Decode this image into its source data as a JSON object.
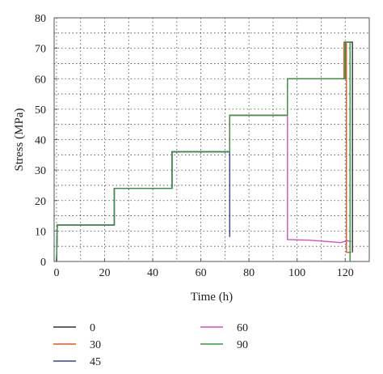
{
  "chart_data": {
    "type": "line",
    "xlabel": "Time (h)",
    "ylabel": "Stress (MPa)",
    "xlim": [
      -1,
      130
    ],
    "ylim": [
      0,
      80
    ],
    "x_ticks": [
      "0",
      "20",
      "40",
      "60",
      "80",
      "100",
      "120"
    ],
    "y_ticks": [
      "0",
      "10",
      "20",
      "30",
      "40",
      "50",
      "60",
      "70",
      "80"
    ],
    "grid": "dotted",
    "legend_position": "bottom",
    "series": [
      {
        "name": "0",
        "color": "#333333",
        "x": [
          0,
          0.3,
          24,
          24,
          48,
          48,
          72,
          72,
          96,
          96,
          120,
          120,
          123,
          123
        ],
        "y": [
          0,
          12,
          12,
          24,
          24,
          36,
          36,
          48,
          48,
          60,
          60,
          72,
          72,
          3
        ]
      },
      {
        "name": "30",
        "color": "#e05a2b",
        "x": [
          0,
          0.3,
          24,
          24,
          48,
          48,
          72,
          72,
          96,
          96,
          119.5,
          119.5,
          120.5,
          120.5,
          122.5
        ],
        "y": [
          0,
          12,
          12,
          24,
          24,
          36,
          36,
          48,
          48,
          60,
          60,
          72,
          72,
          3,
          3
        ]
      },
      {
        "name": "45",
        "color": "#3a3fb0",
        "x": [
          0,
          0.3,
          24,
          24,
          48,
          48,
          72,
          72
        ],
        "y": [
          0,
          12,
          12,
          24,
          24,
          36,
          36,
          8
        ]
      },
      {
        "name": "60",
        "color": "#d44fbf",
        "x": [
          0,
          0.3,
          24,
          24,
          48,
          48,
          72,
          72,
          96,
          96,
          105,
          112,
          118,
          121,
          122.5
        ],
        "y": [
          0,
          12,
          12,
          24,
          24,
          36,
          36,
          48,
          48,
          7.2,
          7,
          6.6,
          6.2,
          6.8,
          6.5
        ]
      },
      {
        "name": "90",
        "color": "#2e9a3c",
        "x": [
          0,
          0.3,
          24,
          24,
          48,
          48,
          72,
          72,
          96,
          96,
          120,
          120,
          122,
          122
        ],
        "y": [
          0,
          12,
          12,
          24,
          24,
          36,
          36,
          48,
          48,
          60,
          60,
          72,
          72,
          0
        ]
      }
    ]
  }
}
